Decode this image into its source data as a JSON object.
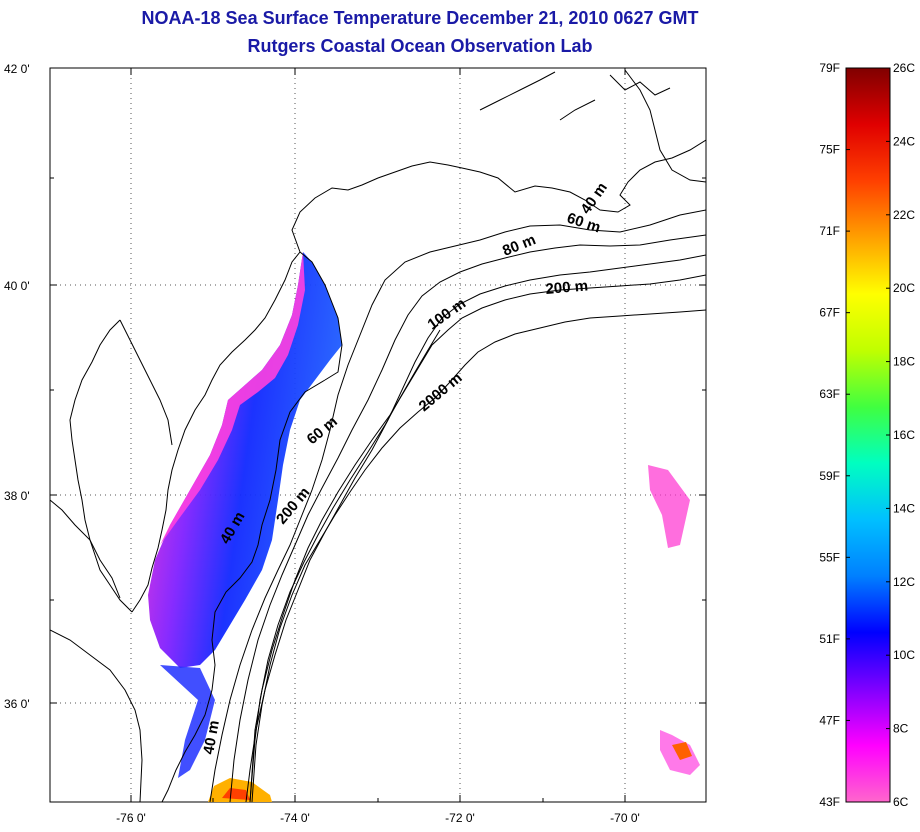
{
  "title": "NOAA-18 Sea Surface Temperature December 21, 2010 0627 GMT",
  "subtitle": "Rutgers Coastal Ocean Observation Lab",
  "map": {
    "lon_ticks": [
      "-76 0'",
      "-74 0'",
      "-72 0'",
      "-70 0'"
    ],
    "lat_ticks": [
      "42 0'",
      "40 0'",
      "38 0'",
      "36 0'"
    ],
    "contour_labels": [
      "40 m",
      "60 m",
      "80 m",
      "200 m",
      "100 m",
      "2000 m",
      "60 m",
      "200 m",
      "40 m",
      "40 m"
    ]
  },
  "colorbar": {
    "fahrenheit": [
      "79F",
      "75F",
      "71F",
      "67F",
      "63F",
      "59F",
      "55F",
      "51F",
      "47F",
      "43F"
    ],
    "celsius": [
      "26C",
      "24C",
      "22C",
      "20C",
      "18C",
      "16C",
      "14C",
      "12C",
      "10C",
      "8C",
      "6C"
    ],
    "colors": [
      "#ff66cc",
      "#ff00ff",
      "#7f00ff",
      "#0000ff",
      "#0080ff",
      "#00c0ff",
      "#00ffc0",
      "#40ff40",
      "#c0ff00",
      "#ffff00",
      "#ffa000",
      "#ff4000",
      "#e00000",
      "#800000"
    ]
  }
}
